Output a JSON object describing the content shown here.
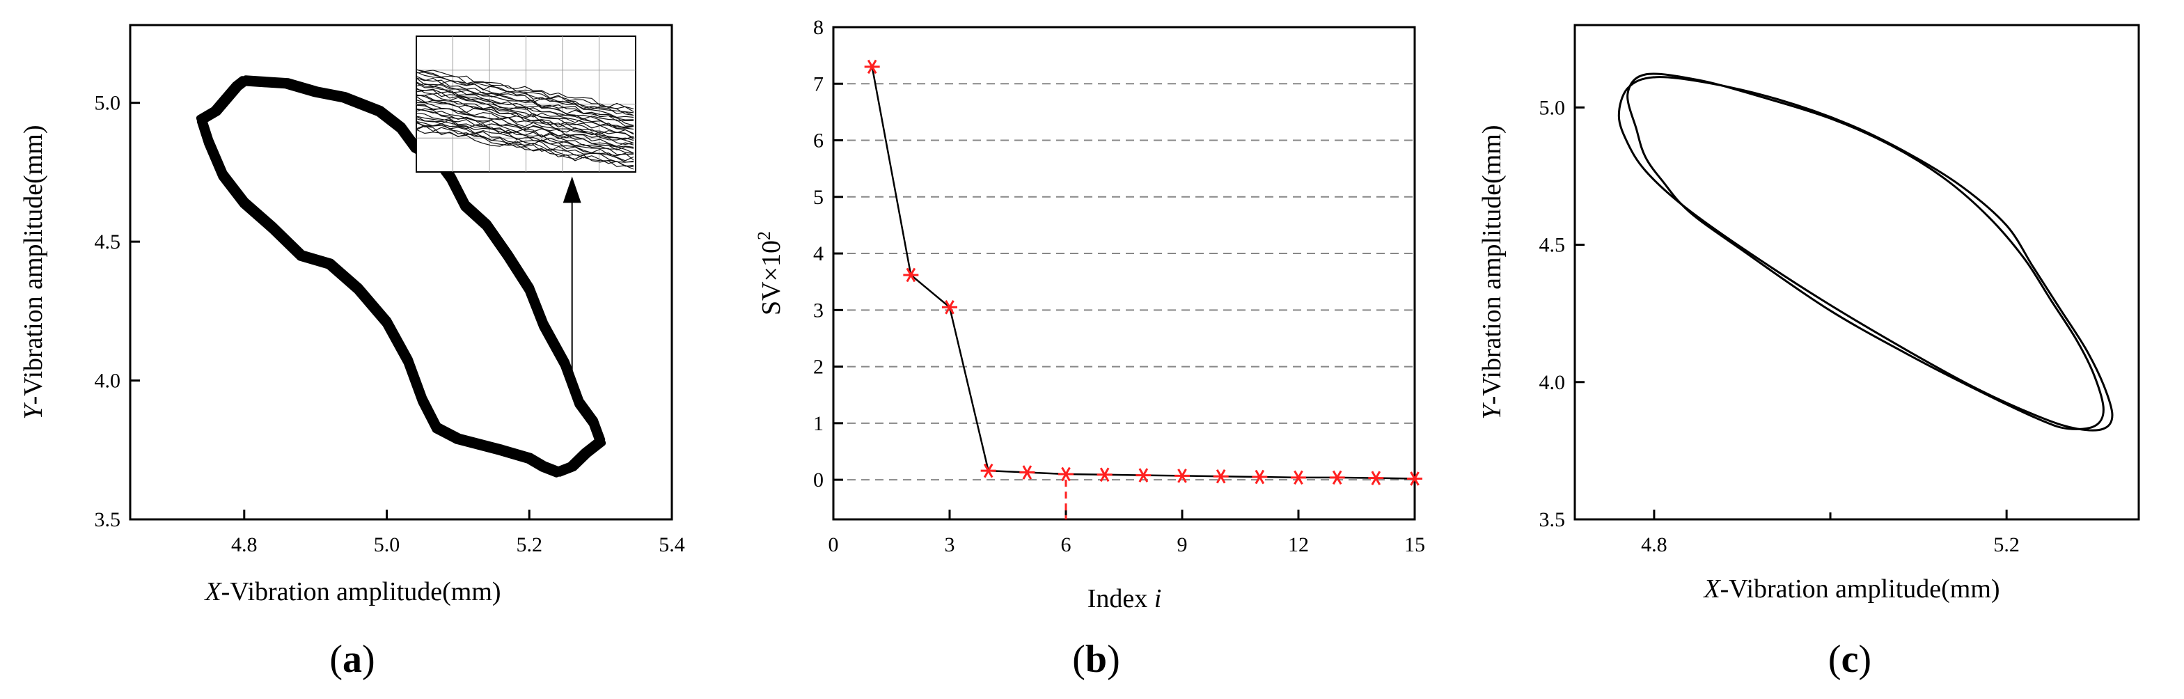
{
  "chart_data": [
    {
      "type": "scatter",
      "panel_label": {
        "open": "(",
        "letter": "a",
        "close": ")"
      },
      "xlabel": {
        "var": "X",
        "rest": "-Vibration amplitude(mm)"
      },
      "ylabel": {
        "var": "Y",
        "rest": "-Vibration amplitude(mm)"
      },
      "xlim": [
        4.64,
        5.4
      ],
      "ylim": [
        3.5,
        5.28
      ],
      "xticks": [
        "4.8",
        "5.0",
        "5.2",
        "5.4"
      ],
      "xtick_values": [
        4.8,
        5.0,
        5.2,
        5.4
      ],
      "yticks": [
        "3.5",
        "4.0",
        "4.5",
        "5.0"
      ],
      "ytick_values": [
        3.5,
        4.0,
        4.5,
        5.0
      ],
      "series": [
        {
          "x": [
            4.74,
            4.76,
            4.79,
            4.8,
            4.86,
            4.9,
            4.94,
            4.99,
            5.02,
            5.04,
            5.07,
            5.09,
            5.11,
            5.14,
            5.17,
            5.2,
            5.22,
            5.25,
            5.27,
            5.29,
            5.3,
            5.28,
            5.26,
            5.24,
            5.22,
            5.2,
            5.16,
            5.1,
            5.07,
            5.05,
            5.03,
            5.0,
            4.96,
            4.92,
            4.88,
            4.84,
            4.8,
            4.77,
            4.75,
            4.74
          ],
          "y": [
            4.94,
            4.97,
            5.06,
            5.08,
            5.07,
            5.04,
            5.02,
            4.97,
            4.91,
            4.84,
            4.8,
            4.73,
            4.63,
            4.56,
            4.45,
            4.33,
            4.2,
            4.06,
            3.92,
            3.85,
            3.78,
            3.74,
            3.69,
            3.67,
            3.69,
            3.72,
            3.75,
            3.79,
            3.83,
            3.93,
            4.07,
            4.21,
            4.33,
            4.42,
            4.45,
            4.55,
            4.64,
            4.74,
            4.86,
            4.94
          ]
        }
      ],
      "annotations": [
        {
          "type": "arrow",
          "from": [
            5.26,
            4.02
          ],
          "to": [
            5.26,
            4.72
          ]
        },
        {
          "type": "inset",
          "description_free": true,
          "grid_cols": 6,
          "grid_rows": 4
        }
      ]
    },
    {
      "type": "line",
      "panel_label": {
        "open": "(",
        "letter": "b",
        "close": ")"
      },
      "xlabel": {
        "base": "Index ",
        "var": "i"
      },
      "ylabel": {
        "base": "SV×10",
        "sup": "2"
      },
      "xlim": [
        0,
        15
      ],
      "ylim": [
        -0.7,
        8
      ],
      "xticks": [
        "0",
        "3",
        "6",
        "9",
        "12",
        "15"
      ],
      "xtick_values": [
        0,
        3,
        6,
        9,
        12,
        15
      ],
      "yticks": [
        "0",
        "1",
        "2",
        "3",
        "4",
        "5",
        "6",
        "7",
        "8"
      ],
      "ytick_values": [
        0,
        1,
        2,
        3,
        4,
        5,
        6,
        7,
        8
      ],
      "grid": "horizontal-dashed",
      "x": [
        1,
        2,
        3,
        4,
        5,
        6,
        7,
        8,
        9,
        10,
        11,
        12,
        13,
        14,
        15
      ],
      "y": [
        7.3,
        3.62,
        3.05,
        0.16,
        0.13,
        0.1,
        0.09,
        0.08,
        0.07,
        0.06,
        0.05,
        0.04,
        0.04,
        0.03,
        0.02
      ],
      "marker_color": "#ff2020",
      "annotations": [
        {
          "type": "vline-dashed",
          "x": 6,
          "from_y": 0,
          "to_y": -0.7,
          "color": "#ff2020"
        }
      ]
    },
    {
      "type": "line",
      "panel_label": {
        "open": "(",
        "letter": "c",
        "close": ")"
      },
      "xlabel": {
        "var": "X",
        "rest": "-Vibration amplitude(mm)"
      },
      "ylabel": {
        "var": "Y",
        "rest": "-Vibration amplitude(mm)"
      },
      "xlim": [
        4.71,
        5.35
      ],
      "ylim": [
        3.5,
        5.3
      ],
      "xticks": [
        "4.8",
        "5.2"
      ],
      "xtick_values": [
        4.8,
        5.2
      ],
      "xminor_values": [
        5.0
      ],
      "yticks": [
        "3.5",
        "4.0",
        "4.5",
        "5.0"
      ],
      "ytick_values": [
        3.5,
        4.0,
        4.5,
        5.0
      ],
      "series": [
        {
          "x": [
            4.79,
            4.85,
            4.92,
            5.0,
            5.07,
            5.13,
            5.18,
            5.22,
            5.25,
            5.28,
            5.3,
            5.31,
            5.3,
            5.27,
            5.24,
            5.18,
            5.1,
            5.0,
            4.9,
            4.84,
            4.81,
            4.79,
            4.78,
            4.77,
            4.79
          ],
          "y": [
            5.12,
            5.1,
            5.04,
            4.96,
            4.86,
            4.74,
            4.6,
            4.45,
            4.3,
            4.15,
            4.02,
            3.9,
            3.84,
            3.83,
            3.86,
            3.95,
            4.08,
            4.26,
            4.48,
            4.62,
            4.73,
            4.82,
            4.92,
            5.05,
            5.12
          ]
        },
        {
          "x": [
            4.8,
            4.86,
            4.94,
            5.02,
            5.09,
            5.15,
            5.2,
            5.23,
            5.26,
            5.29,
            5.31,
            5.32,
            5.31,
            5.28,
            5.24,
            5.17,
            5.09,
            4.99,
            4.89,
            4.83,
            4.79,
            4.77,
            4.76,
            4.77,
            4.8
          ],
          "y": [
            5.11,
            5.09,
            5.03,
            4.94,
            4.83,
            4.71,
            4.57,
            4.42,
            4.27,
            4.12,
            3.99,
            3.88,
            3.83,
            3.83,
            3.87,
            3.97,
            4.11,
            4.3,
            4.51,
            4.65,
            4.77,
            4.87,
            4.97,
            5.07,
            5.11
          ]
        }
      ]
    }
  ]
}
